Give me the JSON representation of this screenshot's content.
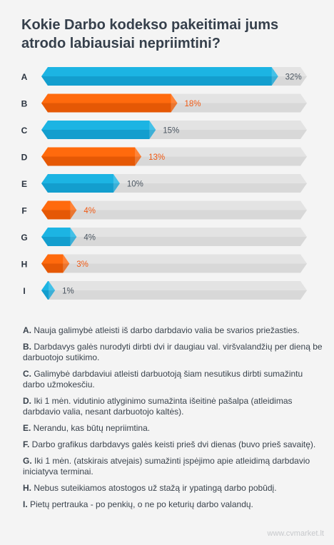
{
  "title": "Kokie Darbo kodekso pakeitimai jums atrodo labiausiai nepriimtini?",
  "colors": {
    "blue": "#1cb4e3",
    "blue_dark": "#0d8fbf",
    "orange": "#ff6a0d",
    "orange_dark": "#d44d00",
    "track": "#e3e3e3",
    "track_dark": "#cfcfcf",
    "orange_text": "#f05a14",
    "gray_text": "#4a5560"
  },
  "chart_data": {
    "type": "bar",
    "orientation": "horizontal",
    "categories": [
      "A",
      "B",
      "C",
      "D",
      "E",
      "F",
      "G",
      "H",
      "I"
    ],
    "values": [
      32,
      18,
      15,
      13,
      10,
      4,
      4,
      3,
      1
    ],
    "value_labels": [
      "32%",
      "18%",
      "15%",
      "13%",
      "10%",
      "4%",
      "4%",
      "3%",
      "1%"
    ],
    "bar_colors": [
      "blue",
      "orange",
      "blue",
      "orange",
      "blue",
      "orange",
      "blue",
      "orange",
      "blue"
    ],
    "xlim": [
      0,
      36
    ]
  },
  "legend": [
    {
      "key": "A.",
      "text": "Nauja galimybė atleisti iš darbo darbdavio valia be svarios priežasties."
    },
    {
      "key": "B.",
      "text": "Darbdavys galės nurodyti dirbti dvi ir daugiau val. viršvalandžių per dieną be darbuotojo sutikimo."
    },
    {
      "key": "C.",
      "text": "Galimybė darbdaviui atleisti darbuotoją šiam nesutikus dirbti sumažintu darbo užmokesčiu."
    },
    {
      "key": "D.",
      "text": "Iki 1 mėn. vidutinio atlyginimo sumažinta išeitinė pašalpa (atleidimas darbdavio valia, nesant darbuotojo kaltės)."
    },
    {
      "key": "E.",
      "text": "Nerandu, kas būtų nepriimtina."
    },
    {
      "key": "F.",
      "text": "Darbo grafikus darbdavys galės keisti prieš dvi dienas (buvo prieš savaitę)."
    },
    {
      "key": "G.",
      "text": "Iki 1 mėn. (atskirais atvejais) sumažinti įspėjimo apie atleidimą darbdavio iniciatyva terminai."
    },
    {
      "key": "H.",
      "text": "Nebus suteikiamos atostogos už stažą ir ypatingą darbo pobūdį."
    },
    {
      "key": "I.",
      "text": "Pietų pertrauka - po penkių, o ne po keturių darbo valandų."
    }
  ],
  "footer": "www.cvmarket.lt"
}
